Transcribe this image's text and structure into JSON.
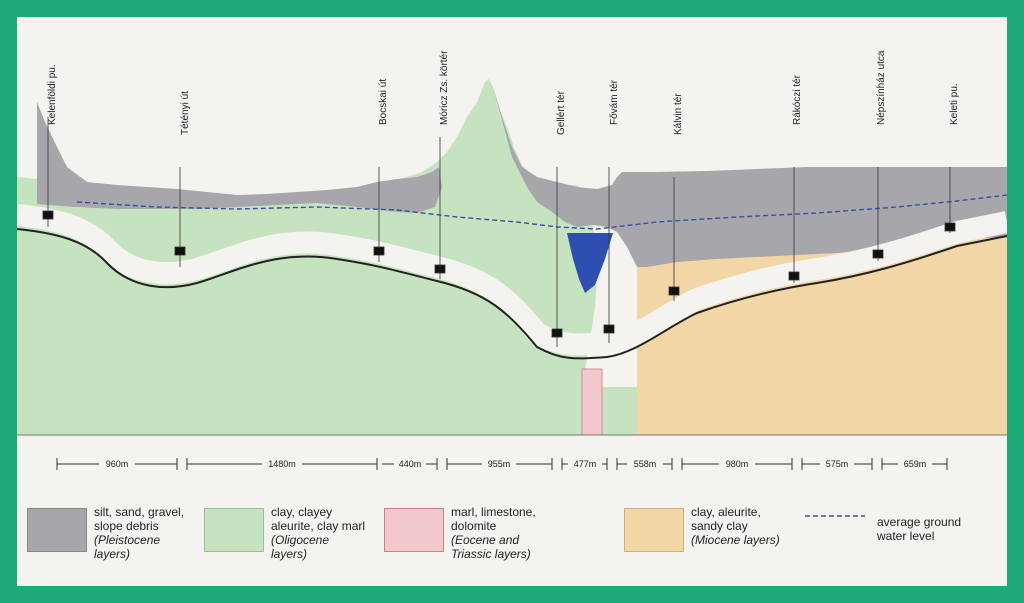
{
  "stations": [
    {
      "name": "Kelenföldi pu."
    },
    {
      "name": "Tétényi út"
    },
    {
      "name": "Bocskai út"
    },
    {
      "name": "Móricz Zs. körtér"
    },
    {
      "name": "Gellért tér"
    },
    {
      "name": "Fővám tér"
    },
    {
      "name": "Kálvin tér"
    },
    {
      "name": "Rákóczi tér"
    },
    {
      "name": "Népszínház utca"
    },
    {
      "name": "Keleti pu."
    }
  ],
  "distances": [
    "960m",
    "1480m",
    "440m",
    "955m",
    "477m",
    "558m",
    "980m",
    "575m",
    "659m"
  ],
  "legend": {
    "pleistocene": {
      "line1": "silt, sand, gravel,",
      "line2": "slope debris",
      "line3": "(Pleistocene",
      "line4": "layers)",
      "color": "#a7a6ab"
    },
    "oligocene": {
      "line1": "clay, clayey",
      "line2": "aleurite, clay marl",
      "line3": "(Oligocene",
      "line4": "layers)",
      "color": "#c6e3c0"
    },
    "eocene": {
      "line1": "marl, limestone,",
      "line2": "dolomite",
      "line3": "(Eocene and",
      "line4": "Triassic layers)",
      "color": "#f3c8cd"
    },
    "miocene": {
      "line1": "clay, aleurite,",
      "line2": "sandy clay",
      "line3": "(Miocene layers)",
      "color": "#f3d6a6"
    },
    "groundwater": {
      "line1": "average ground",
      "line2": "water level",
      "color": "#3a50a8"
    }
  },
  "colors": {
    "frame": "#1eaa78",
    "paper": "#f4f3ef",
    "river": "#2e4fb0"
  }
}
